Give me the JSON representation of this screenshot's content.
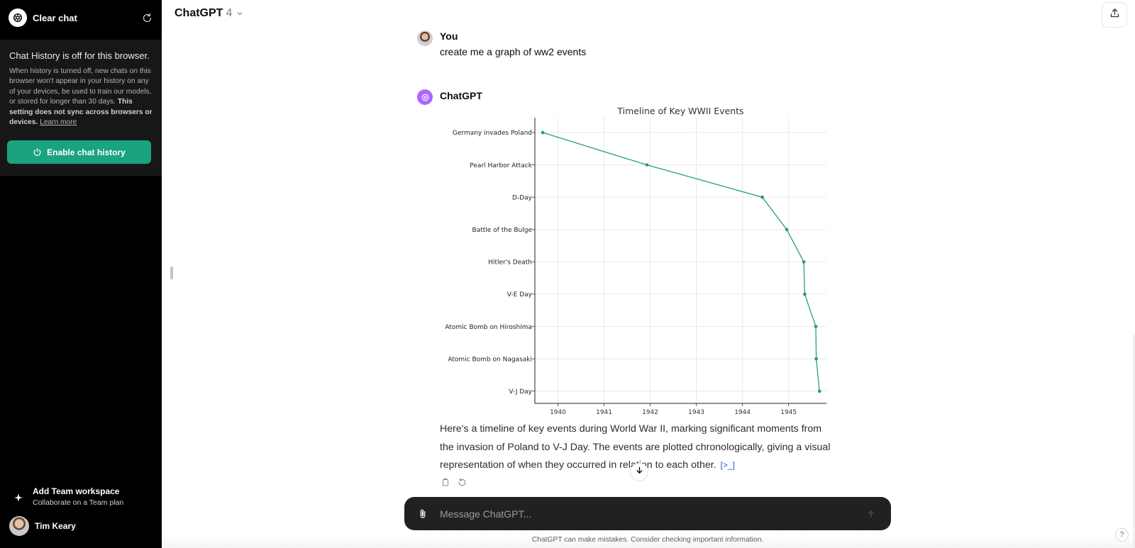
{
  "sidebar": {
    "new_chat_label": "Clear chat",
    "history_title": "Chat History is off for this browser.",
    "history_desc_plain": "When history is turned off, new chats on this browser won't appear in your history on any of your devices, be used to train our models, or stored for longer than 30 days. ",
    "history_desc_bold": "This setting does not sync across browsers or devices.",
    "learn_more": "Learn more",
    "enable_history_label": "Enable chat history",
    "team_title": "Add Team workspace",
    "team_subtitle": "Collaborate on a Team plan",
    "user_name": "Tim Keary"
  },
  "header": {
    "model_name": "ChatGPT",
    "model_version": "4"
  },
  "conversation": {
    "user_author": "You",
    "user_message": "create me a graph of ww2 events",
    "assistant_author": "ChatGPT",
    "assistant_reply": "Here's a timeline of key events during World War II, marking significant moments from the invasion of Poland to V-J Day. The events are plotted chronologically, giving a visual representation of when they occurred in relation to each other.",
    "code_ref": "[>_]"
  },
  "composer": {
    "placeholder": "Message ChatGPT..."
  },
  "footer": {
    "disclaimer": "ChatGPT can make mistakes. Consider checking important information.",
    "help": "?"
  },
  "colors": {
    "sidebar_bg": "#000000",
    "history_box_bg": "#171717",
    "accent_green": "#19a37f",
    "chart_line": "#2a9d7f",
    "assistant_avatar": "#ab68ff",
    "composer_bg": "#212121"
  },
  "icons": [
    "openai-logo-icon",
    "refresh-icon",
    "power-icon",
    "sparkle-icon",
    "chevron-down-icon",
    "share-icon",
    "copy-icon",
    "regenerate-icon",
    "arrow-down-icon",
    "paperclip-icon",
    "send-arrow-icon"
  ],
  "chart_data": {
    "type": "line",
    "title": "Timeline of Key WWII Events",
    "xlabel": "",
    "ylabel": "",
    "x_ticks": [
      "1940",
      "1941",
      "1942",
      "1943",
      "1944",
      "1945"
    ],
    "xlim": [
      1939.5,
      1945.82
    ],
    "grid": true,
    "categories": [
      "Germany invades Poland",
      "Pearl Harbor Attack",
      "D-Day",
      "Battle of the Bulge",
      "Hitler's Death",
      "V-E Day",
      "Atomic Bomb on Hiroshima",
      "Atomic Bomb on Nagasaki",
      "V-J Day"
    ],
    "x": [
      1939.67,
      1941.93,
      1944.43,
      1944.96,
      1945.33,
      1945.35,
      1945.59,
      1945.6,
      1945.67
    ]
  }
}
